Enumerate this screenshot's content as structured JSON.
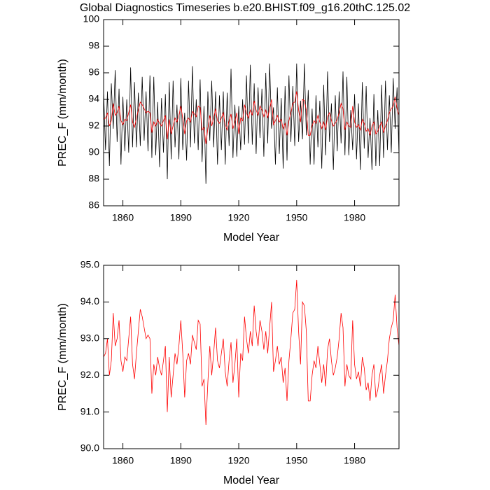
{
  "chart_data": [
    {
      "type": "line",
      "title": "Global Diagnostics Timeseries b.e20.BHIST.f09_g16.20thC.125.02",
      "xlabel": "Model Year",
      "ylabel": "PREC_F (mm/month)",
      "xlim": [
        1850,
        2003
      ],
      "ylim": [
        86,
        100
      ],
      "xticks": [
        1860,
        1890,
        1920,
        1950,
        1980
      ],
      "yticks": [
        86,
        88,
        90,
        92,
        94,
        96,
        98,
        100
      ],
      "x": [
        1850,
        1851,
        1852,
        1853,
        1854,
        1855,
        1856,
        1857,
        1858,
        1859,
        1860,
        1861,
        1862,
        1863,
        1864,
        1865,
        1866,
        1867,
        1868,
        1869,
        1870,
        1871,
        1872,
        1873,
        1874,
        1875,
        1876,
        1877,
        1878,
        1879,
        1880,
        1881,
        1882,
        1883,
        1884,
        1885,
        1886,
        1887,
        1888,
        1889,
        1890,
        1891,
        1892,
        1893,
        1894,
        1895,
        1896,
        1897,
        1898,
        1899,
        1900,
        1901,
        1902,
        1903,
        1904,
        1905,
        1906,
        1907,
        1908,
        1909,
        1910,
        1911,
        1912,
        1913,
        1914,
        1915,
        1916,
        1917,
        1918,
        1919,
        1920,
        1921,
        1922,
        1923,
        1924,
        1925,
        1926,
        1927,
        1928,
        1929,
        1930,
        1931,
        1932,
        1933,
        1934,
        1935,
        1936,
        1937,
        1938,
        1939,
        1940,
        1941,
        1942,
        1943,
        1944,
        1945,
        1946,
        1947,
        1948,
        1949,
        1950,
        1951,
        1952,
        1953,
        1954,
        1955,
        1956,
        1957,
        1958,
        1959,
        1960,
        1961,
        1962,
        1963,
        1964,
        1965,
        1966,
        1967,
        1968,
        1969,
        1970,
        1971,
        1972,
        1973,
        1974,
        1975,
        1976,
        1977,
        1978,
        1979,
        1980,
        1981,
        1982,
        1983,
        1984,
        1985,
        1986,
        1987,
        1988,
        1989,
        1990,
        1991,
        1992,
        1993,
        1994,
        1995,
        1996,
        1997,
        1998,
        1999,
        2000,
        2001,
        2002,
        2003
      ],
      "series": [
        {
          "color": "#000000",
          "values": [
            94.6,
            90.2,
            94.6,
            89.0,
            95.2,
            91.8,
            96.2,
            90.8,
            94.8,
            89.1,
            94.2,
            90.1,
            94.0,
            90.0,
            96.4,
            90.4,
            95.3,
            90.4,
            94.5,
            90.5,
            95.7,
            90.9,
            94.6,
            90.1,
            95.8,
            89.6,
            95.7,
            89.8,
            93.8,
            88.9,
            94.1,
            90.0,
            94.4,
            88.0,
            95.3,
            89.5,
            95.4,
            90.4,
            93.6,
            89.5,
            95.6,
            90.2,
            93.0,
            89.4,
            95.4,
            90.4,
            96.5,
            90.7,
            94.0,
            90.2,
            95.5,
            89.3,
            93.5,
            87.65,
            94.6,
            90.9,
            95.4,
            90.4,
            94.6,
            89.1,
            94.3,
            90.2,
            94.6,
            89.1,
            94.5,
            90.5,
            96.3,
            89.6,
            93.6,
            89.7,
            93.5,
            90.2,
            94.0,
            90.6,
            95.8,
            90.7,
            96.6,
            90.6,
            95.2,
            89.9,
            94.9,
            91.1,
            94.8,
            89.7,
            96.0,
            90.7,
            96.7,
            91.8,
            93.4,
            89.1,
            94.9,
            89.9,
            94.1,
            88.8,
            95.0,
            89.4,
            95.8,
            90.8,
            95.0,
            90.5,
            96.7,
            90.8,
            93.9,
            91.0,
            96.7,
            91.3,
            94.7,
            89.1,
            93.3,
            89.1,
            94.3,
            90.4,
            93.9,
            88.8,
            95.1,
            89.8,
            96.1,
            90.8,
            93.7,
            88.7,
            94.3,
            90.1,
            94.6,
            90.7,
            96.1,
            89.8,
            95.7,
            89.8,
            93.2,
            90.2,
            94.4,
            89.5,
            93.7,
            88.7,
            95.3,
            90.3,
            95.0,
            89.6,
            92.6,
            88.7,
            94.4,
            89.0,
            93.2,
            89.0,
            95.1,
            89.6,
            95.4,
            90.2,
            94.3,
            90.0,
            95.6,
            91.8,
            94.9,
            89.8
          ]
        },
        {
          "color": "#ff0000",
          "values": [
            92.5,
            92.6,
            93.0,
            92.0,
            92.4,
            93.7,
            92.8,
            93.0,
            93.5,
            92.4,
            92.1,
            92.5,
            92.4,
            93.0,
            93.6,
            92.3,
            91.9,
            92.6,
            93.2,
            93.8,
            93.6,
            93.3,
            93.0,
            93.1,
            93.0,
            91.5,
            92.3,
            92.0,
            92.5,
            92.2,
            92.0,
            92.4,
            92.8,
            91.0,
            92.5,
            91.4,
            92.0,
            92.6,
            92.3,
            92.8,
            93.5,
            92.6,
            91.4,
            92.4,
            92.6,
            92.3,
            93.1,
            92.9,
            92.7,
            93.5,
            93.4,
            91.7,
            91.9,
            90.65,
            91.8,
            92.8,
            92.0,
            92.6,
            93.3,
            92.4,
            92.2,
            92.6,
            93.0,
            92.1,
            91.7,
            92.4,
            92.9,
            91.8,
            92.3,
            93.0,
            91.4,
            92.6,
            92.4,
            93.6,
            93.0,
            92.6,
            93.2,
            92.8,
            93.9,
            93.2,
            92.8,
            93.5,
            93.2,
            92.7,
            93.2,
            92.6,
            93.3,
            94.0,
            92.1,
            92.4,
            92.8,
            92.3,
            92.5,
            91.8,
            92.2,
            91.3,
            92.4,
            93.0,
            93.7,
            93.8,
            94.6,
            93.2,
            92.3,
            94.0,
            93.9,
            93.2,
            91.3,
            91.3,
            92.0,
            92.4,
            92.2,
            92.8,
            92.3,
            91.8,
            92.3,
            91.7,
            92.7,
            93.0,
            92.4,
            92.0,
            92.2,
            92.5,
            93.0,
            93.7,
            93.3,
            91.7,
            92.3,
            92.0,
            91.9,
            93.5,
            92.3,
            91.9,
            92.1,
            91.7,
            92.5,
            92.2,
            91.6,
            91.8,
            91.3,
            92.0,
            92.3,
            91.4,
            91.6,
            92.0,
            92.3,
            91.5,
            92.0,
            92.4,
            93.0,
            93.3,
            93.5,
            94.2,
            93.3,
            92.8
          ]
        }
      ]
    },
    {
      "type": "line",
      "xlabel": "Model Year",
      "ylabel": "PREC_F (mm/month)",
      "xlim": [
        1850,
        2003
      ],
      "ylim": [
        90,
        95
      ],
      "xticks": [
        1860,
        1890,
        1920,
        1950,
        1980
      ],
      "yticks": [
        {
          "value": 90,
          "label": "90.0"
        },
        {
          "value": 91,
          "label": "91.0"
        },
        {
          "value": 92,
          "label": "92.0"
        },
        {
          "value": 93,
          "label": "93.0"
        },
        {
          "value": 94,
          "label": "94.0"
        },
        {
          "value": 95,
          "label": "95.0"
        }
      ],
      "x": [
        1850,
        1851,
        1852,
        1853,
        1854,
        1855,
        1856,
        1857,
        1858,
        1859,
        1860,
        1861,
        1862,
        1863,
        1864,
        1865,
        1866,
        1867,
        1868,
        1869,
        1870,
        1871,
        1872,
        1873,
        1874,
        1875,
        1876,
        1877,
        1878,
        1879,
        1880,
        1881,
        1882,
        1883,
        1884,
        1885,
        1886,
        1887,
        1888,
        1889,
        1890,
        1891,
        1892,
        1893,
        1894,
        1895,
        1896,
        1897,
        1898,
        1899,
        1900,
        1901,
        1902,
        1903,
        1904,
        1905,
        1906,
        1907,
        1908,
        1909,
        1910,
        1911,
        1912,
        1913,
        1914,
        1915,
        1916,
        1917,
        1918,
        1919,
        1920,
        1921,
        1922,
        1923,
        1924,
        1925,
        1926,
        1927,
        1928,
        1929,
        1930,
        1931,
        1932,
        1933,
        1934,
        1935,
        1936,
        1937,
        1938,
        1939,
        1940,
        1941,
        1942,
        1943,
        1944,
        1945,
        1946,
        1947,
        1948,
        1949,
        1950,
        1951,
        1952,
        1953,
        1954,
        1955,
        1956,
        1957,
        1958,
        1959,
        1960,
        1961,
        1962,
        1963,
        1964,
        1965,
        1966,
        1967,
        1968,
        1969,
        1970,
        1971,
        1972,
        1973,
        1974,
        1975,
        1976,
        1977,
        1978,
        1979,
        1980,
        1981,
        1982,
        1983,
        1984,
        1985,
        1986,
        1987,
        1988,
        1989,
        1990,
        1991,
        1992,
        1993,
        1994,
        1995,
        1996,
        1997,
        1998,
        1999,
        2000,
        2001,
        2002,
        2003
      ],
      "series": [
        {
          "color": "#ff0000",
          "values": [
            92.5,
            92.6,
            93.0,
            92.0,
            92.4,
            93.7,
            92.8,
            93.0,
            93.5,
            92.4,
            92.1,
            92.5,
            92.4,
            93.0,
            93.6,
            92.3,
            91.9,
            92.6,
            93.2,
            93.8,
            93.6,
            93.3,
            93.0,
            93.1,
            93.0,
            91.5,
            92.3,
            92.0,
            92.5,
            92.2,
            92.0,
            92.4,
            92.8,
            91.0,
            92.5,
            91.4,
            92.0,
            92.6,
            92.3,
            92.8,
            93.5,
            92.6,
            91.4,
            92.4,
            92.6,
            92.3,
            93.1,
            92.9,
            92.7,
            93.5,
            93.4,
            91.7,
            91.9,
            90.65,
            91.8,
            92.8,
            92.0,
            92.6,
            93.3,
            92.4,
            92.2,
            92.6,
            93.0,
            92.1,
            91.7,
            92.4,
            92.9,
            91.8,
            92.3,
            93.0,
            91.4,
            92.6,
            92.4,
            93.6,
            93.0,
            92.6,
            93.2,
            92.8,
            93.9,
            93.2,
            92.8,
            93.5,
            93.2,
            92.7,
            93.2,
            92.6,
            93.3,
            94.0,
            92.1,
            92.4,
            92.8,
            92.3,
            92.5,
            91.8,
            92.2,
            91.3,
            92.4,
            93.0,
            93.7,
            93.8,
            94.6,
            93.2,
            92.3,
            94.0,
            93.9,
            93.2,
            91.3,
            91.3,
            92.0,
            92.4,
            92.2,
            92.8,
            92.3,
            91.8,
            92.3,
            91.7,
            92.7,
            93.0,
            92.4,
            92.0,
            92.2,
            92.5,
            93.0,
            93.7,
            93.3,
            91.7,
            92.3,
            92.0,
            91.9,
            93.5,
            92.3,
            91.9,
            92.1,
            91.7,
            92.5,
            92.2,
            91.6,
            91.8,
            91.3,
            92.0,
            92.3,
            91.4,
            91.6,
            92.0,
            92.3,
            91.5,
            92.0,
            92.4,
            93.0,
            93.3,
            93.5,
            94.2,
            93.3,
            92.8
          ]
        }
      ]
    }
  ]
}
